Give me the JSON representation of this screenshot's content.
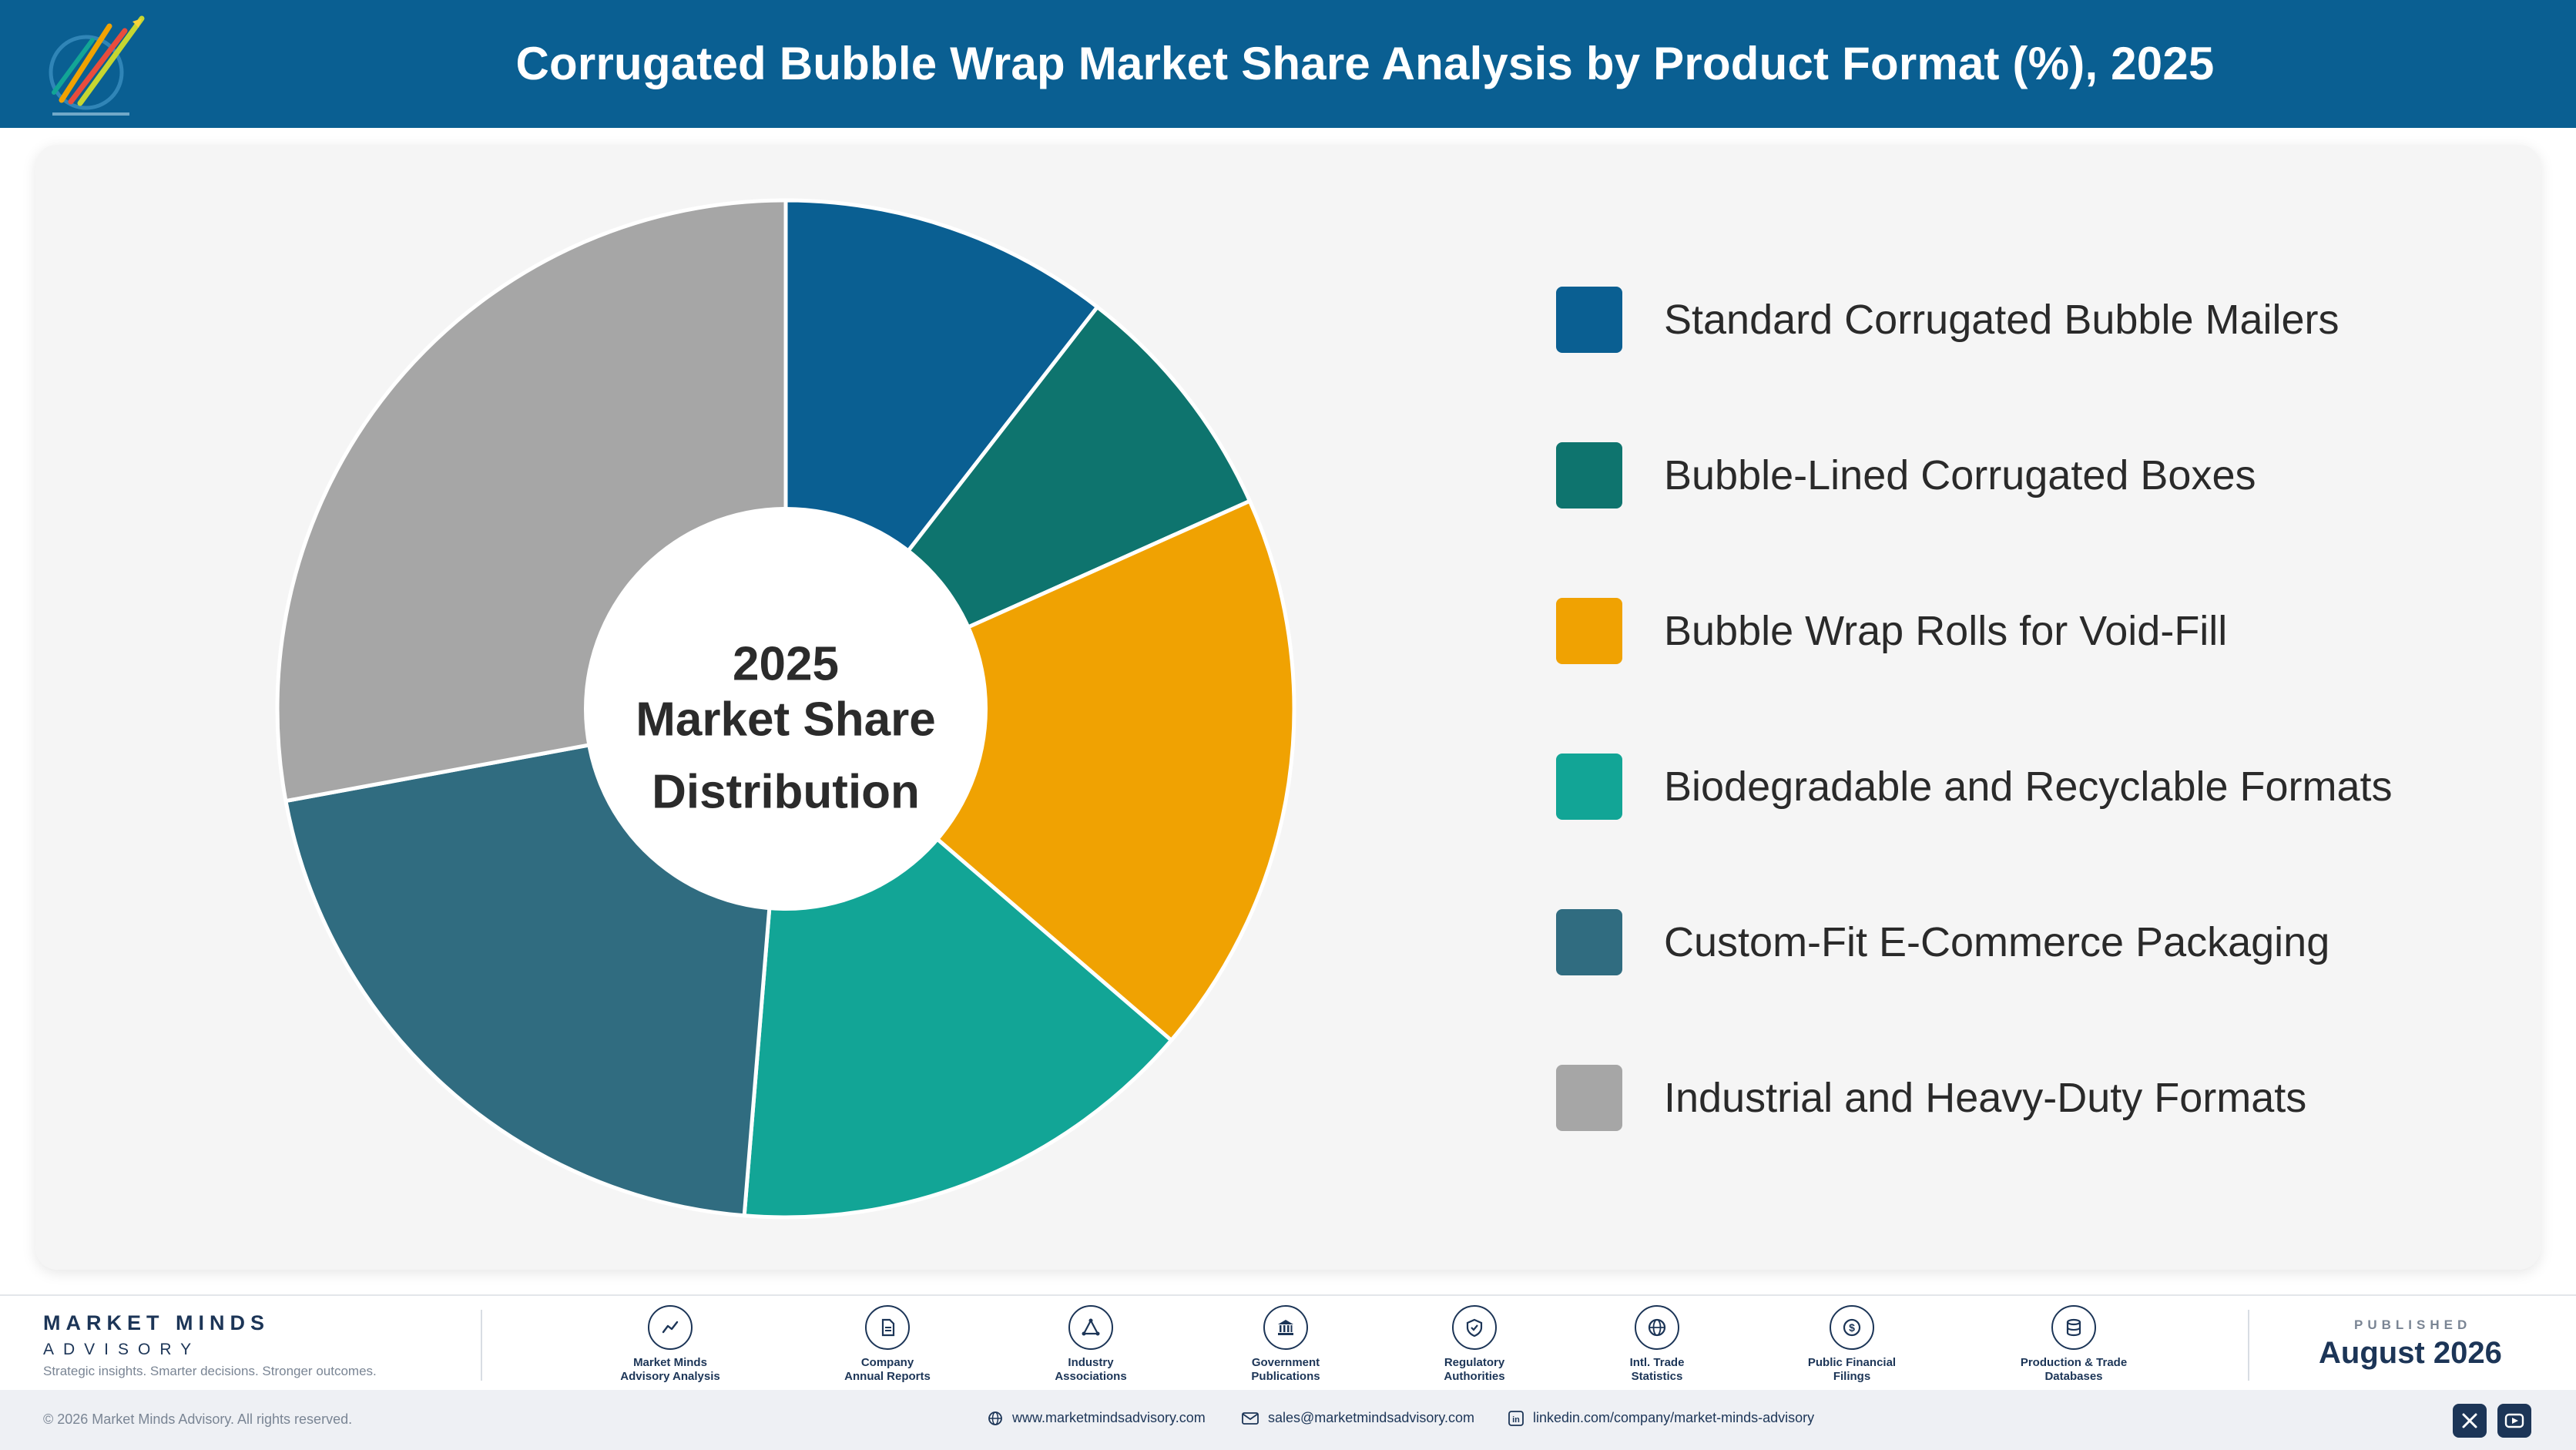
{
  "header": {
    "title": "Corrugated Bubble Wrap Market Share Analysis by Product Format (%), 2025"
  },
  "chart": {
    "center_line1": "2025",
    "center_line2": "Market Share",
    "center_line3": "Distribution"
  },
  "chart_data": {
    "type": "pie",
    "donut": true,
    "title": "Corrugated Bubble Wrap Market Share Analysis by Product Format (%), 2025",
    "legend_position": "right",
    "categories": [
      "Standard Corrugated Bubble Mailers",
      "Bubble-Lined Corrugated Boxes",
      "Bubble Wrap Rolls for Void-Fill",
      "Biodegradable and Recyclable Formats",
      "Custom-Fit E-Commerce Packaging",
      "Industrial and Heavy-Duty Formats"
    ],
    "values": [
      10.5,
      7.8,
      18.0,
      15.0,
      20.8,
      27.9
    ],
    "colors": [
      "#0a5f92",
      "#0e746e",
      "#f0a202",
      "#12a596",
      "#306c80",
      "#a6a6a6"
    ]
  },
  "footer": {
    "brand_name": "MARKET MINDS",
    "brand_sub": "ADVISORY",
    "tagline": "Strategic insights. Smarter decisions. Stronger outcomes.",
    "sources": [
      {
        "line1": "Market Minds",
        "line2": "Advisory Analysis",
        "icon": "trend-chart-icon"
      },
      {
        "line1": "Company",
        "line2": "Annual Reports",
        "icon": "document-icon"
      },
      {
        "line1": "Industry",
        "line2": "Associations",
        "icon": "network-icon"
      },
      {
        "line1": "Government",
        "line2": "Publications",
        "icon": "government-building-icon"
      },
      {
        "line1": "Regulatory",
        "line2": "Authorities",
        "icon": "shield-icon"
      },
      {
        "line1": "Intl. Trade",
        "line2": "Statistics",
        "icon": "globe-icon"
      },
      {
        "line1": "Public Financial",
        "line2": "Filings",
        "icon": "dollar-coin-icon"
      },
      {
        "line1": "Production & Trade",
        "line2": "Databases",
        "icon": "database-icon"
      }
    ],
    "published_caption": "PUBLISHED",
    "published_date": "August 2026"
  },
  "bottombar": {
    "copyright": "© 2026 Market Minds Advisory. All rights reserved.",
    "website": "www.marketmindsadvisory.com",
    "email": "sales@marketmindsadvisory.com",
    "linkedin": "linkedin.com/company/market-minds-advisory"
  }
}
